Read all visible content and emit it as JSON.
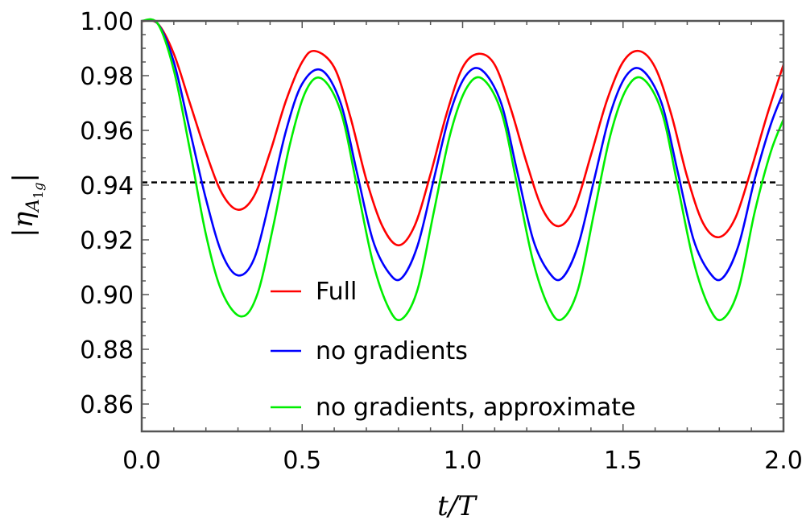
{
  "chart_data": {
    "type": "line",
    "xlabel": "t/T",
    "ylabel": "|η_A1g|",
    "ylabel_parts": {
      "bar_left": "|",
      "eta": "η",
      "sub_a": "A",
      "sub_1": "1",
      "sub_g": "g",
      "bar_right": "|"
    },
    "xlim": [
      0.0,
      2.0
    ],
    "ylim": [
      0.85,
      1.0
    ],
    "x_ticks": [
      "0.0",
      "0.5",
      "1.0",
      "1.5",
      "2.0"
    ],
    "x_tick_values": [
      0.0,
      0.5,
      1.0,
      1.5,
      2.0
    ],
    "y_ticks": [
      "1.00",
      "0.98",
      "0.96",
      "0.94",
      "0.92",
      "0.90",
      "0.88",
      "0.86"
    ],
    "y_tick_values": [
      1.0,
      0.98,
      0.96,
      0.94,
      0.92,
      0.9,
      0.88,
      0.86
    ],
    "grid": false,
    "legend_position": "bottom-center",
    "reference_line": {
      "y": 0.941,
      "style": "dashed",
      "color": "#000000"
    },
    "series": [
      {
        "name": "Full",
        "color": "#ff0000",
        "points": [
          [
            0.0,
            1.0
          ],
          [
            0.05,
            0.999
          ],
          [
            0.1,
            0.988
          ],
          [
            0.15,
            0.97
          ],
          [
            0.2,
            0.952
          ],
          [
            0.25,
            0.937
          ],
          [
            0.3,
            0.931
          ],
          [
            0.35,
            0.936
          ],
          [
            0.4,
            0.952
          ],
          [
            0.45,
            0.971
          ],
          [
            0.5,
            0.985
          ],
          [
            0.54,
            0.989
          ],
          [
            0.6,
            0.983
          ],
          [
            0.65,
            0.965
          ],
          [
            0.7,
            0.942
          ],
          [
            0.75,
            0.925
          ],
          [
            0.8,
            0.918
          ],
          [
            0.85,
            0.925
          ],
          [
            0.9,
            0.944
          ],
          [
            0.95,
            0.966
          ],
          [
            1.0,
            0.983
          ],
          [
            1.05,
            0.988
          ],
          [
            1.1,
            0.984
          ],
          [
            1.15,
            0.968
          ],
          [
            1.2,
            0.948
          ],
          [
            1.25,
            0.931
          ],
          [
            1.3,
            0.925
          ],
          [
            1.35,
            0.932
          ],
          [
            1.4,
            0.951
          ],
          [
            1.45,
            0.971
          ],
          [
            1.5,
            0.985
          ],
          [
            1.55,
            0.989
          ],
          [
            1.6,
            0.983
          ],
          [
            1.65,
            0.966
          ],
          [
            1.7,
            0.943
          ],
          [
            1.75,
            0.926
          ],
          [
            1.8,
            0.921
          ],
          [
            1.85,
            0.928
          ],
          [
            1.9,
            0.946
          ],
          [
            1.95,
            0.966
          ],
          [
            2.0,
            0.984
          ]
        ]
      },
      {
        "name": "no gradients",
        "color": "#0000ff",
        "points": [
          [
            0.0,
            1.0
          ],
          [
            0.05,
            0.999
          ],
          [
            0.1,
            0.985
          ],
          [
            0.15,
            0.96
          ],
          [
            0.2,
            0.935
          ],
          [
            0.25,
            0.915
          ],
          [
            0.3,
            0.907
          ],
          [
            0.35,
            0.913
          ],
          [
            0.4,
            0.935
          ],
          [
            0.45,
            0.96
          ],
          [
            0.5,
            0.977
          ],
          [
            0.56,
            0.982
          ],
          [
            0.62,
            0.97
          ],
          [
            0.67,
            0.945
          ],
          [
            0.72,
            0.92
          ],
          [
            0.77,
            0.908
          ],
          [
            0.81,
            0.906
          ],
          [
            0.86,
            0.918
          ],
          [
            0.91,
            0.942
          ],
          [
            0.96,
            0.966
          ],
          [
            1.01,
            0.98
          ],
          [
            1.06,
            0.982
          ],
          [
            1.12,
            0.97
          ],
          [
            1.17,
            0.945
          ],
          [
            1.22,
            0.92
          ],
          [
            1.27,
            0.908
          ],
          [
            1.31,
            0.906
          ],
          [
            1.36,
            0.918
          ],
          [
            1.41,
            0.942
          ],
          [
            1.46,
            0.966
          ],
          [
            1.51,
            0.98
          ],
          [
            1.56,
            0.982
          ],
          [
            1.62,
            0.97
          ],
          [
            1.67,
            0.945
          ],
          [
            1.72,
            0.92
          ],
          [
            1.77,
            0.908
          ],
          [
            1.81,
            0.906
          ],
          [
            1.86,
            0.918
          ],
          [
            1.91,
            0.942
          ],
          [
            1.96,
            0.962
          ],
          [
            2.0,
            0.974
          ]
        ]
      },
      {
        "name": "no gradients, approximate",
        "color": "#00ee00",
        "points": [
          [
            0.0,
            1.0
          ],
          [
            0.05,
            0.999
          ],
          [
            0.1,
            0.982
          ],
          [
            0.15,
            0.953
          ],
          [
            0.2,
            0.922
          ],
          [
            0.25,
            0.901
          ],
          [
            0.31,
            0.892
          ],
          [
            0.36,
            0.9
          ],
          [
            0.41,
            0.925
          ],
          [
            0.46,
            0.954
          ],
          [
            0.51,
            0.974
          ],
          [
            0.56,
            0.979
          ],
          [
            0.62,
            0.967
          ],
          [
            0.67,
            0.94
          ],
          [
            0.72,
            0.912
          ],
          [
            0.77,
            0.895
          ],
          [
            0.81,
            0.891
          ],
          [
            0.86,
            0.902
          ],
          [
            0.91,
            0.93
          ],
          [
            0.96,
            0.958
          ],
          [
            1.01,
            0.975
          ],
          [
            1.06,
            0.979
          ],
          [
            1.12,
            0.967
          ],
          [
            1.17,
            0.94
          ],
          [
            1.22,
            0.912
          ],
          [
            1.27,
            0.895
          ],
          [
            1.31,
            0.891
          ],
          [
            1.36,
            0.902
          ],
          [
            1.41,
            0.93
          ],
          [
            1.46,
            0.958
          ],
          [
            1.51,
            0.975
          ],
          [
            1.56,
            0.979
          ],
          [
            1.62,
            0.967
          ],
          [
            1.67,
            0.94
          ],
          [
            1.72,
            0.912
          ],
          [
            1.77,
            0.895
          ],
          [
            1.81,
            0.891
          ],
          [
            1.86,
            0.902
          ],
          [
            1.91,
            0.93
          ],
          [
            1.96,
            0.952
          ],
          [
            2.0,
            0.964
          ]
        ]
      }
    ]
  }
}
